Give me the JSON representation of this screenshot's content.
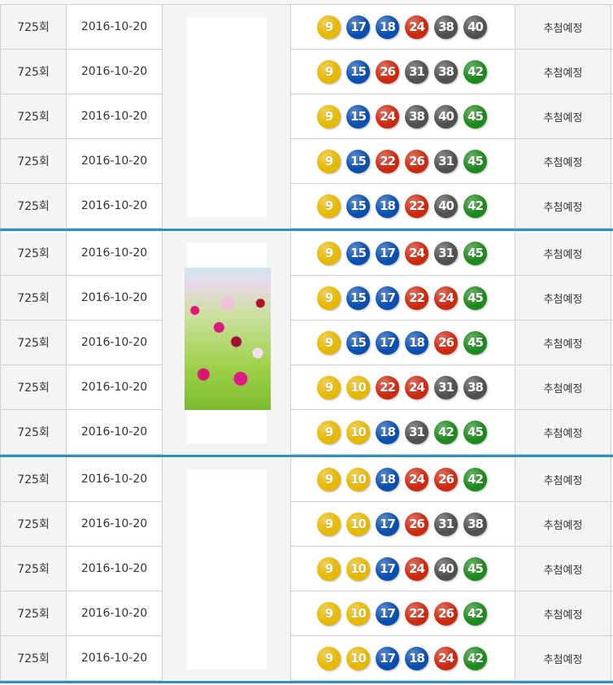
{
  "ball_colors": {
    "1-10": "#e6b800",
    "11-20": "#0a4fb0",
    "21-30": "#cc2a10",
    "31-40": "#505050",
    "41-45": "#1e8a1e"
  },
  "accent_color": "#2a93bd",
  "groups": [
    {
      "has_image": false,
      "rows": [
        {
          "round": "725회",
          "date": "2016-10-20",
          "numbers": [
            9,
            17,
            18,
            24,
            38,
            40
          ],
          "status": "추첨예정"
        },
        {
          "round": "725회",
          "date": "2016-10-20",
          "numbers": [
            9,
            15,
            26,
            31,
            38,
            42
          ],
          "status": "추첨예정"
        },
        {
          "round": "725회",
          "date": "2016-10-20",
          "numbers": [
            9,
            15,
            24,
            38,
            40,
            45
          ],
          "status": "추첨예정"
        },
        {
          "round": "725회",
          "date": "2016-10-20",
          "numbers": [
            9,
            15,
            22,
            26,
            31,
            45
          ],
          "status": "추첨예정"
        },
        {
          "round": "725회",
          "date": "2016-10-20",
          "numbers": [
            9,
            15,
            18,
            22,
            40,
            42
          ],
          "status": "추첨예정"
        }
      ]
    },
    {
      "has_image": true,
      "image": "cosmos-flowers-photo",
      "rows": [
        {
          "round": "725회",
          "date": "2016-10-20",
          "numbers": [
            9,
            15,
            17,
            24,
            31,
            45
          ],
          "status": "추첨예정"
        },
        {
          "round": "725회",
          "date": "2016-10-20",
          "numbers": [
            9,
            15,
            17,
            22,
            24,
            45
          ],
          "status": "추첨예정"
        },
        {
          "round": "725회",
          "date": "2016-10-20",
          "numbers": [
            9,
            15,
            17,
            18,
            26,
            45
          ],
          "status": "추첨예정"
        },
        {
          "round": "725회",
          "date": "2016-10-20",
          "numbers": [
            9,
            10,
            22,
            24,
            31,
            38
          ],
          "status": "추첨예정"
        },
        {
          "round": "725회",
          "date": "2016-10-20",
          "numbers": [
            9,
            10,
            18,
            31,
            42,
            45
          ],
          "status": "추첨예정"
        }
      ]
    },
    {
      "has_image": false,
      "rows": [
        {
          "round": "725회",
          "date": "2016-10-20",
          "numbers": [
            9,
            10,
            18,
            24,
            26,
            42
          ],
          "status": "추첨예정"
        },
        {
          "round": "725회",
          "date": "2016-10-20",
          "numbers": [
            9,
            10,
            17,
            26,
            31,
            38
          ],
          "status": "추첨예정"
        },
        {
          "round": "725회",
          "date": "2016-10-20",
          "numbers": [
            9,
            10,
            17,
            24,
            40,
            45
          ],
          "status": "추첨예정"
        },
        {
          "round": "725회",
          "date": "2016-10-20",
          "numbers": [
            9,
            10,
            17,
            22,
            26,
            42
          ],
          "status": "추첨예정"
        },
        {
          "round": "725회",
          "date": "2016-10-20",
          "numbers": [
            9,
            10,
            17,
            18,
            24,
            42
          ],
          "status": "추첨예정"
        }
      ]
    }
  ]
}
